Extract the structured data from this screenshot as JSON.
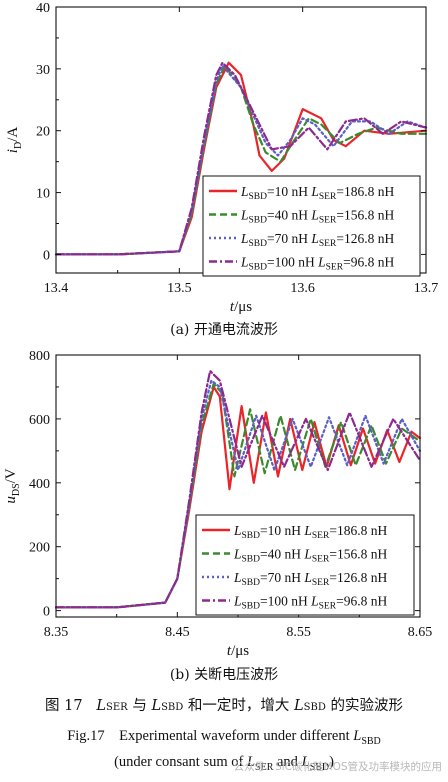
{
  "chart_data": [
    {
      "type": "line",
      "panel": "a",
      "xlabel_var": "t",
      "xlabel_unit": "/μs",
      "ylabel_var": "i",
      "ylabel_sub": "D",
      "ylabel_unit": "/A",
      "xlim": [
        13.4,
        13.7
      ],
      "ylim": [
        -3,
        40
      ],
      "xticks": [
        13.4,
        13.5,
        13.6,
        13.7
      ],
      "yticks": [
        0,
        10,
        20,
        30,
        40
      ],
      "grid": false,
      "legend_position": "lower-right",
      "series": [
        {
          "name": "L_SBD=10 nH L_SER=186.8 nH",
          "legend": {
            "a": "=10 nH",
            "b": "=186.8 nH"
          },
          "color": "#e8262a",
          "dash": "",
          "x": [
            13.4,
            13.45,
            13.5,
            13.51,
            13.52,
            13.53,
            13.54,
            13.55,
            13.56,
            13.565,
            13.575,
            13.585,
            13.6,
            13.615,
            13.625,
            13.635,
            13.65,
            13.67,
            13.7
          ],
          "y": [
            0,
            0,
            0.5,
            6,
            17,
            27,
            31,
            29,
            21,
            16,
            13.5,
            15.5,
            23.5,
            22,
            18.5,
            17.5,
            20,
            19.5,
            20
          ]
        },
        {
          "name": "L_SBD=40 nH L_SER=156.8 nH",
          "legend": {
            "a": "=40 nH",
            "b": "=156.8 nH"
          },
          "color": "#3a8a2e",
          "dash": "7,4",
          "x": [
            13.4,
            13.45,
            13.5,
            13.51,
            13.52,
            13.53,
            13.537,
            13.55,
            13.56,
            13.57,
            13.582,
            13.595,
            13.605,
            13.615,
            13.63,
            13.645,
            13.66,
            13.68,
            13.7
          ],
          "y": [
            0,
            0,
            0.5,
            6.5,
            17.5,
            27.5,
            30.5,
            27,
            21,
            16.5,
            15,
            19,
            22,
            21,
            18,
            19.5,
            20.5,
            19.5,
            19.5
          ]
        },
        {
          "name": "L_SBD=70 nH L_SER=126.8 nH",
          "legend": {
            "a": "=70 nH",
            "b": "=126.8 nH"
          },
          "color": "#5c5fc4",
          "dash": "2,3",
          "x": [
            13.4,
            13.45,
            13.5,
            13.51,
            13.52,
            13.53,
            13.535,
            13.55,
            13.56,
            13.57,
            13.58,
            13.59,
            13.6,
            13.61,
            13.625,
            13.64,
            13.655,
            13.67,
            13.685,
            13.7
          ],
          "y": [
            0,
            0,
            0.5,
            7,
            18,
            28,
            30.5,
            27,
            22.5,
            18,
            16,
            18.5,
            22,
            21,
            17.5,
            21.5,
            21.5,
            19.5,
            21.5,
            20.5
          ]
        },
        {
          "name": "L_SBD=100 nH L_SER=96.8 nH",
          "legend": {
            "a": "=100 nH",
            "b": "=96.8 nH"
          },
          "color": "#8c2a8e",
          "dash": "8,3,2,3",
          "x": [
            13.4,
            13.45,
            13.5,
            13.51,
            13.52,
            13.53,
            13.535,
            13.545,
            13.555,
            13.565,
            13.575,
            13.59,
            13.605,
            13.62,
            13.635,
            13.65,
            13.665,
            13.68,
            13.7
          ],
          "y": [
            0,
            0,
            0.5,
            7.5,
            19,
            29,
            31,
            29,
            25,
            21,
            17,
            17.5,
            20.5,
            17,
            21.5,
            22,
            19.5,
            21.5,
            20.5
          ]
        }
      ]
    },
    {
      "type": "line",
      "panel": "b",
      "xlabel_var": "t",
      "xlabel_unit": "/μs",
      "ylabel_var": "u",
      "ylabel_sub": "DS",
      "ylabel_unit": "/V",
      "xlim": [
        8.35,
        8.65
      ],
      "ylim": [
        -20,
        800
      ],
      "xticks": [
        8.35,
        8.45,
        8.55,
        8.65
      ],
      "yticks": [
        0,
        200,
        400,
        600,
        800
      ],
      "grid": false,
      "legend_position": "lower-right",
      "series": [
        {
          "name": "L_SBD=10 nH L_SER=186.8 nH",
          "legend": {
            "a": "=10 nH",
            "b": "=186.8 nH"
          },
          "color": "#e8262a",
          "dash": "",
          "x": [
            8.35,
            8.4,
            8.44,
            8.45,
            8.46,
            8.47,
            8.48,
            8.485,
            8.493,
            8.503,
            8.513,
            8.523,
            8.533,
            8.543,
            8.553,
            8.563,
            8.573,
            8.583,
            8.593,
            8.603,
            8.613,
            8.623,
            8.633,
            8.643,
            8.65
          ],
          "y": [
            10,
            10,
            25,
            100,
            320,
            560,
            700,
            670,
            380,
            640,
            400,
            620,
            420,
            600,
            440,
            590,
            450,
            580,
            455,
            570,
            460,
            565,
            465,
            560,
            540
          ]
        },
        {
          "name": "L_SBD=40 nH L_SER=156.8 nH",
          "legend": {
            "a": "=40 nH",
            "b": "=156.8 nH"
          },
          "color": "#3a8a2e",
          "dash": "7,4",
          "x": [
            8.35,
            8.4,
            8.44,
            8.45,
            8.46,
            8.47,
            8.48,
            8.487,
            8.497,
            8.51,
            8.522,
            8.535,
            8.547,
            8.56,
            8.572,
            8.585,
            8.597,
            8.61,
            8.622,
            8.635,
            8.65
          ],
          "y": [
            10,
            10,
            25,
            100,
            330,
            580,
            710,
            680,
            420,
            630,
            430,
            610,
            440,
            600,
            450,
            590,
            455,
            580,
            460,
            570,
            530
          ]
        },
        {
          "name": "L_SBD=70 nH L_SER=126.8 nH",
          "legend": {
            "a": "=70 nH",
            "b": "=126.8 nH"
          },
          "color": "#5c5fc4",
          "dash": "2,3",
          "x": [
            8.35,
            8.4,
            8.44,
            8.45,
            8.46,
            8.47,
            8.478,
            8.485,
            8.5,
            8.515,
            8.53,
            8.545,
            8.56,
            8.575,
            8.59,
            8.605,
            8.62,
            8.635,
            8.65
          ],
          "y": [
            10,
            10,
            25,
            100,
            340,
            600,
            720,
            700,
            440,
            610,
            440,
            600,
            450,
            605,
            455,
            610,
            460,
            600,
            500
          ]
        },
        {
          "name": "L_SBD=100 nH L_SER=96.8 nH",
          "legend": {
            "a": "=100 nH",
            "b": "=96.8 nH"
          },
          "color": "#8c2a8e",
          "dash": "8,3,2,3",
          "x": [
            8.35,
            8.4,
            8.44,
            8.45,
            8.46,
            8.47,
            8.477,
            8.485,
            8.503,
            8.52,
            8.538,
            8.556,
            8.574,
            8.592,
            8.61,
            8.628,
            8.65
          ],
          "y": [
            10,
            10,
            25,
            100,
            350,
            620,
            750,
            720,
            450,
            610,
            450,
            600,
            440,
            620,
            450,
            600,
            470
          ]
        }
      ]
    }
  ],
  "legend_labels": {
    "L": "L",
    "sbd": "SBD",
    "ser": "SER"
  },
  "subcaptions": {
    "a": "(a) 开通电流波形",
    "b": "(b) 关断电压波形"
  },
  "figure_caption": {
    "prefix": "图 17",
    "p1": "L",
    "s1": "SER",
    "p2": " 与 ",
    "p3": "L",
    "s2": "SBD",
    "p4": " 和一定时，增大 ",
    "p5": "L",
    "s3": "SBD",
    "p6": " 的实验波形"
  },
  "english_caption": {
    "line1_a": "Fig.17    Experimental waveform under different ",
    "line1_L": "L",
    "line1_sub": "SBD",
    "line2_a": "(under consant sum of ",
    "line2_L1": "L",
    "line2_sub1": "SER",
    "line2_and": " and ",
    "line2_L2": "L",
    "line2_sub2": "SBD",
    "line2_end": ")"
  },
  "watermark": "公众号 · SiC碳化硅MOS管及功率模块的应用"
}
